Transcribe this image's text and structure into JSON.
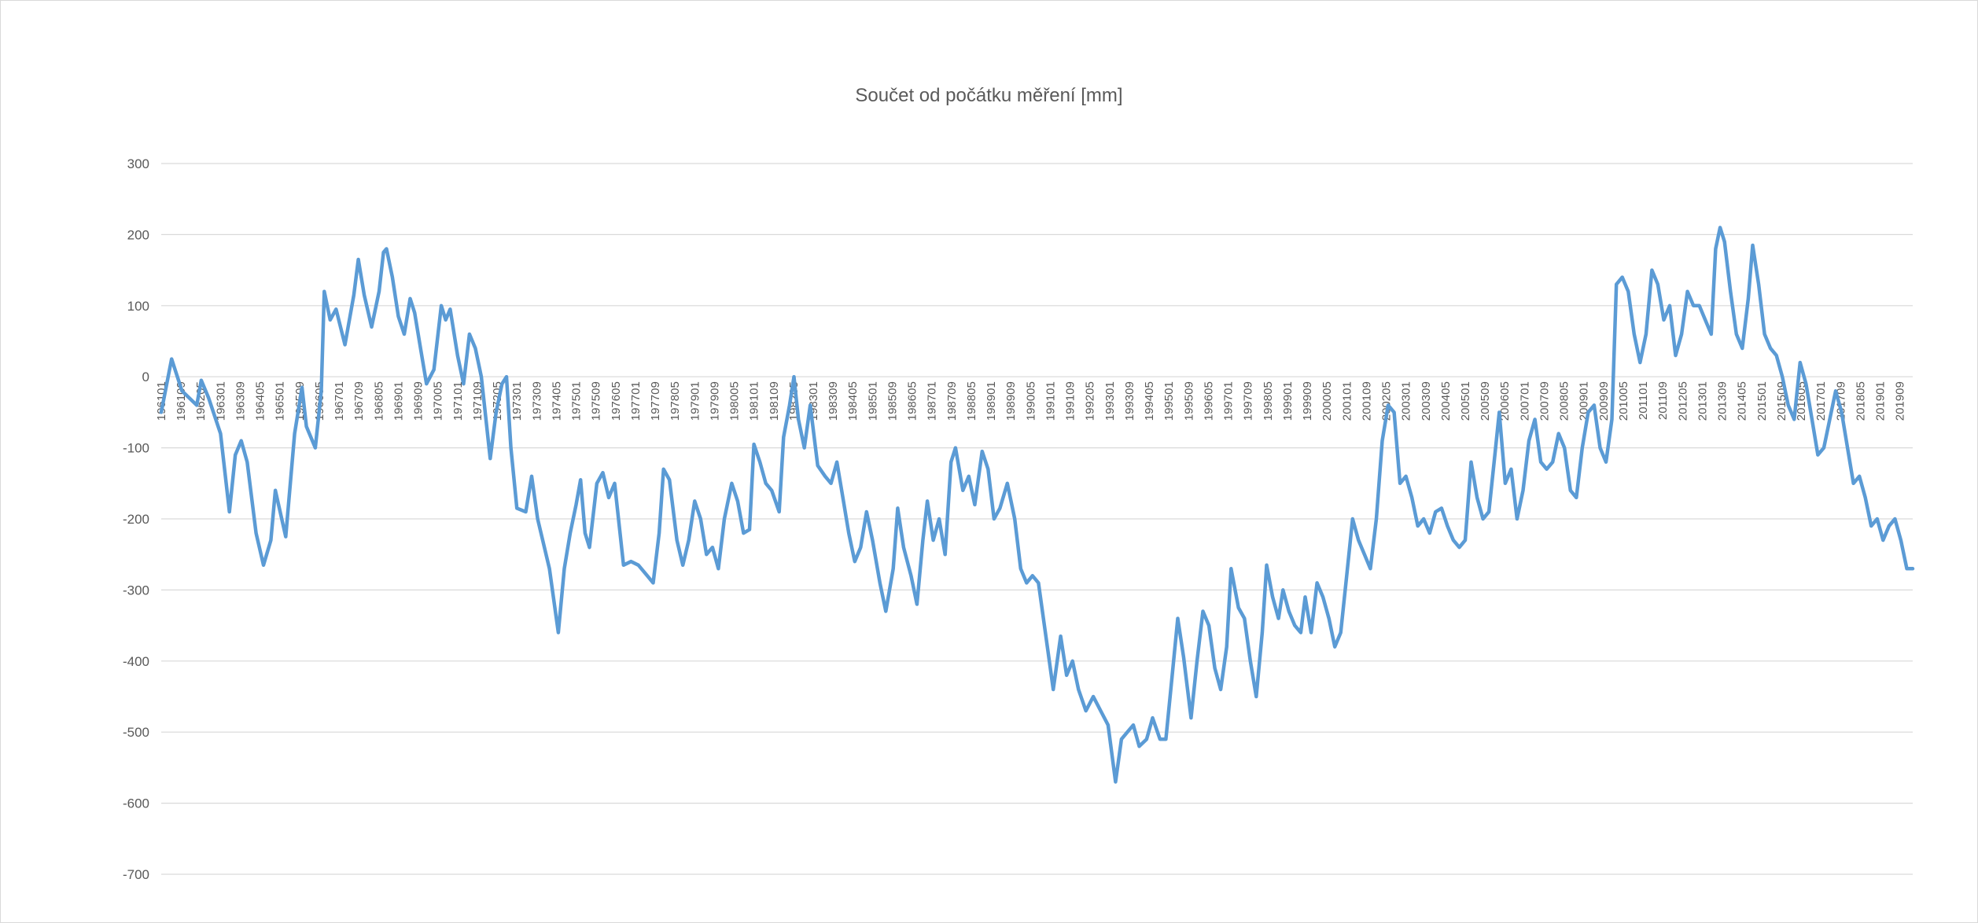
{
  "chart_data": {
    "type": "line",
    "title": "Součet od počátku měření [mm]",
    "xlabel": "",
    "ylabel": "",
    "ylim": [
      -700,
      300
    ],
    "yticks": [
      300,
      200,
      100,
      0,
      -100,
      -200,
      -300,
      -400,
      -500,
      -600,
      -700
    ],
    "grid": true,
    "legend": "none",
    "x_tick_labels": [
      "196101",
      "196109",
      "196205",
      "196301",
      "196309",
      "196405",
      "196501",
      "196509",
      "196605",
      "196701",
      "196709",
      "196805",
      "196901",
      "196909",
      "197005",
      "197101",
      "197109",
      "197205",
      "197301",
      "197309",
      "197405",
      "197501",
      "197509",
      "197605",
      "197701",
      "197709",
      "197805",
      "197901",
      "197909",
      "198005",
      "198101",
      "198109",
      "198205",
      "198301",
      "198309",
      "198405",
      "198501",
      "198509",
      "198605",
      "198701",
      "198709",
      "198805",
      "198901",
      "198909",
      "199005",
      "199101",
      "199109",
      "199205",
      "199301",
      "199309",
      "199405",
      "199501",
      "199509",
      "199605",
      "199701",
      "199709",
      "199805",
      "199901",
      "199909",
      "200005",
      "200101",
      "200109",
      "200205",
      "200301",
      "200309",
      "200405",
      "200501",
      "200509",
      "200605",
      "200701",
      "200709",
      "200805",
      "200901",
      "200909",
      "201005",
      "201101",
      "201109",
      "201205",
      "201301",
      "201309",
      "201405",
      "201501",
      "201509",
      "201605",
      "201701",
      "201709",
      "201805",
      "201901",
      "201909"
    ],
    "series": [
      {
        "color": "#5b9bd5",
        "x_start": "196101",
        "frequency": "monthly",
        "keypoints": [
          [
            1961.0,
            -50
          ],
          [
            1961.35,
            25
          ],
          [
            1961.7,
            -20
          ],
          [
            1962.2,
            -40
          ],
          [
            1962.35,
            -5
          ],
          [
            1962.6,
            -30
          ],
          [
            1963.0,
            -80
          ],
          [
            1963.3,
            -190
          ],
          [
            1963.5,
            -110
          ],
          [
            1963.7,
            -90
          ],
          [
            1963.9,
            -120
          ],
          [
            1964.2,
            -220
          ],
          [
            1964.45,
            -265
          ],
          [
            1964.7,
            -230
          ],
          [
            1964.85,
            -160
          ],
          [
            1965.2,
            -225
          ],
          [
            1965.5,
            -80
          ],
          [
            1965.75,
            -15
          ],
          [
            1965.9,
            -70
          ],
          [
            1966.2,
            -100
          ],
          [
            1966.4,
            -20
          ],
          [
            1966.5,
            120
          ],
          [
            1966.7,
            80
          ],
          [
            1966.9,
            95
          ],
          [
            1967.2,
            45
          ],
          [
            1967.5,
            115
          ],
          [
            1967.65,
            165
          ],
          [
            1967.85,
            115
          ],
          [
            1968.1,
            70
          ],
          [
            1968.35,
            120
          ],
          [
            1968.5,
            175
          ],
          [
            1968.6,
            180
          ],
          [
            1968.8,
            140
          ],
          [
            1969.0,
            85
          ],
          [
            1969.2,
            60
          ],
          [
            1969.4,
            110
          ],
          [
            1969.55,
            90
          ],
          [
            1969.75,
            40
          ],
          [
            1969.95,
            -10
          ],
          [
            1970.2,
            10
          ],
          [
            1970.45,
            100
          ],
          [
            1970.6,
            80
          ],
          [
            1970.75,
            95
          ],
          [
            1971.0,
            30
          ],
          [
            1971.2,
            -10
          ],
          [
            1971.4,
            60
          ],
          [
            1971.6,
            40
          ],
          [
            1971.8,
            0
          ],
          [
            1972.1,
            -115
          ],
          [
            1972.3,
            -50
          ],
          [
            1972.5,
            -10
          ],
          [
            1972.65,
            0
          ],
          [
            1972.8,
            -100
          ],
          [
            1973.0,
            -185
          ],
          [
            1973.3,
            -190
          ],
          [
            1973.5,
            -140
          ],
          [
            1973.7,
            -200
          ],
          [
            1974.1,
            -270
          ],
          [
            1974.4,
            -360
          ],
          [
            1974.6,
            -270
          ],
          [
            1974.8,
            -220
          ],
          [
            1975.0,
            -180
          ],
          [
            1975.15,
            -145
          ],
          [
            1975.3,
            -220
          ],
          [
            1975.45,
            -240
          ],
          [
            1975.7,
            -150
          ],
          [
            1975.9,
            -135
          ],
          [
            1976.1,
            -170
          ],
          [
            1976.3,
            -150
          ],
          [
            1976.6,
            -265
          ],
          [
            1976.85,
            -260
          ],
          [
            1977.1,
            -265
          ],
          [
            1977.4,
            -280
          ],
          [
            1977.6,
            -290
          ],
          [
            1977.8,
            -220
          ],
          [
            1977.95,
            -130
          ],
          [
            1978.15,
            -145
          ],
          [
            1978.4,
            -230
          ],
          [
            1978.6,
            -265
          ],
          [
            1978.8,
            -230
          ],
          [
            1979.0,
            -175
          ],
          [
            1979.2,
            -200
          ],
          [
            1979.4,
            -250
          ],
          [
            1979.6,
            -240
          ],
          [
            1979.8,
            -270
          ],
          [
            1980.0,
            -200
          ],
          [
            1980.25,
            -150
          ],
          [
            1980.45,
            -175
          ],
          [
            1980.65,
            -220
          ],
          [
            1980.85,
            -215
          ],
          [
            1981.0,
            -95
          ],
          [
            1981.2,
            -120
          ],
          [
            1981.4,
            -150
          ],
          [
            1981.6,
            -160
          ],
          [
            1981.85,
            -190
          ],
          [
            1982.0,
            -85
          ],
          [
            1982.2,
            -40
          ],
          [
            1982.35,
            0
          ],
          [
            1982.5,
            -60
          ],
          [
            1982.7,
            -100
          ],
          [
            1982.9,
            -40
          ],
          [
            1983.15,
            -125
          ],
          [
            1983.4,
            -140
          ],
          [
            1983.6,
            -150
          ],
          [
            1983.8,
            -120
          ],
          [
            1984.0,
            -170
          ],
          [
            1984.2,
            -220
          ],
          [
            1984.4,
            -260
          ],
          [
            1984.6,
            -240
          ],
          [
            1984.8,
            -190
          ],
          [
            1985.0,
            -230
          ],
          [
            1985.25,
            -290
          ],
          [
            1985.45,
            -330
          ],
          [
            1985.7,
            -270
          ],
          [
            1985.85,
            -185
          ],
          [
            1986.05,
            -240
          ],
          [
            1986.3,
            -280
          ],
          [
            1986.5,
            -320
          ],
          [
            1986.7,
            -230
          ],
          [
            1986.85,
            -175
          ],
          [
            1987.05,
            -230
          ],
          [
            1987.25,
            -200
          ],
          [
            1987.45,
            -250
          ],
          [
            1987.65,
            -120
          ],
          [
            1987.8,
            -100
          ],
          [
            1988.05,
            -160
          ],
          [
            1988.25,
            -140
          ],
          [
            1988.45,
            -180
          ],
          [
            1988.7,
            -105
          ],
          [
            1988.9,
            -130
          ],
          [
            1989.1,
            -200
          ],
          [
            1989.3,
            -185
          ],
          [
            1989.55,
            -150
          ],
          [
            1989.8,
            -200
          ],
          [
            1990.0,
            -270
          ],
          [
            1990.2,
            -290
          ],
          [
            1990.4,
            -280
          ],
          [
            1990.6,
            -290
          ],
          [
            1990.9,
            -380
          ],
          [
            1991.1,
            -440
          ],
          [
            1991.35,
            -365
          ],
          [
            1991.55,
            -420
          ],
          [
            1991.75,
            -400
          ],
          [
            1991.95,
            -440
          ],
          [
            1992.2,
            -470
          ],
          [
            1992.45,
            -450
          ],
          [
            1992.7,
            -470
          ],
          [
            1992.95,
            -490
          ],
          [
            1993.2,
            -570
          ],
          [
            1993.4,
            -510
          ],
          [
            1993.6,
            -500
          ],
          [
            1993.8,
            -490
          ],
          [
            1994.0,
            -520
          ],
          [
            1994.25,
            -510
          ],
          [
            1994.45,
            -480
          ],
          [
            1994.7,
            -510
          ],
          [
            1994.9,
            -510
          ],
          [
            1995.1,
            -425
          ],
          [
            1995.3,
            -340
          ],
          [
            1995.5,
            -395
          ],
          [
            1995.75,
            -480
          ],
          [
            1995.95,
            -400
          ],
          [
            1996.15,
            -330
          ],
          [
            1996.35,
            -350
          ],
          [
            1996.55,
            -410
          ],
          [
            1996.75,
            -440
          ],
          [
            1996.95,
            -380
          ],
          [
            1997.1,
            -270
          ],
          [
            1997.35,
            -325
          ],
          [
            1997.55,
            -340
          ],
          [
            1997.75,
            -400
          ],
          [
            1997.95,
            -450
          ],
          [
            1998.15,
            -360
          ],
          [
            1998.3,
            -265
          ],
          [
            1998.5,
            -310
          ],
          [
            1998.7,
            -340
          ],
          [
            1998.85,
            -300
          ],
          [
            1999.05,
            -330
          ],
          [
            1999.25,
            -350
          ],
          [
            1999.45,
            -360
          ],
          [
            1999.6,
            -310
          ],
          [
            1999.8,
            -360
          ],
          [
            2000.0,
            -290
          ],
          [
            2000.2,
            -310
          ],
          [
            2000.4,
            -340
          ],
          [
            2000.6,
            -380
          ],
          [
            2000.8,
            -360
          ],
          [
            2001.0,
            -280
          ],
          [
            2001.2,
            -200
          ],
          [
            2001.4,
            -230
          ],
          [
            2001.6,
            -250
          ],
          [
            2001.8,
            -270
          ],
          [
            2002.0,
            -200
          ],
          [
            2002.2,
            -90
          ],
          [
            2002.4,
            -40
          ],
          [
            2002.6,
            -50
          ],
          [
            2002.8,
            -150
          ],
          [
            2003.0,
            -140
          ],
          [
            2003.2,
            -170
          ],
          [
            2003.4,
            -210
          ],
          [
            2003.6,
            -200
          ],
          [
            2003.8,
            -220
          ],
          [
            2004.0,
            -190
          ],
          [
            2004.2,
            -185
          ],
          [
            2004.4,
            -210
          ],
          [
            2004.6,
            -230
          ],
          [
            2004.8,
            -240
          ],
          [
            2005.0,
            -230
          ],
          [
            2005.2,
            -120
          ],
          [
            2005.4,
            -170
          ],
          [
            2005.6,
            -200
          ],
          [
            2005.8,
            -190
          ],
          [
            2006.0,
            -110
          ],
          [
            2006.15,
            -50
          ],
          [
            2006.35,
            -150
          ],
          [
            2006.55,
            -130
          ],
          [
            2006.75,
            -200
          ],
          [
            2006.95,
            -160
          ],
          [
            2007.15,
            -90
          ],
          [
            2007.35,
            -60
          ],
          [
            2007.55,
            -120
          ],
          [
            2007.75,
            -130
          ],
          [
            2007.95,
            -120
          ],
          [
            2008.15,
            -80
          ],
          [
            2008.35,
            -100
          ],
          [
            2008.55,
            -160
          ],
          [
            2008.75,
            -170
          ],
          [
            2008.95,
            -100
          ],
          [
            2009.15,
            -50
          ],
          [
            2009.35,
            -40
          ],
          [
            2009.55,
            -100
          ],
          [
            2009.75,
            -120
          ],
          [
            2009.95,
            -60
          ],
          [
            2010.1,
            130
          ],
          [
            2010.3,
            140
          ],
          [
            2010.5,
            120
          ],
          [
            2010.7,
            60
          ],
          [
            2010.9,
            20
          ],
          [
            2011.1,
            60
          ],
          [
            2011.3,
            150
          ],
          [
            2011.5,
            130
          ],
          [
            2011.7,
            80
          ],
          [
            2011.9,
            100
          ],
          [
            2012.1,
            30
          ],
          [
            2012.3,
            60
          ],
          [
            2012.5,
            120
          ],
          [
            2012.7,
            100
          ],
          [
            2012.9,
            100
          ],
          [
            2013.1,
            80
          ],
          [
            2013.3,
            60
          ],
          [
            2013.45,
            180
          ],
          [
            2013.6,
            210
          ],
          [
            2013.75,
            190
          ],
          [
            2013.95,
            120
          ],
          [
            2014.15,
            60
          ],
          [
            2014.35,
            40
          ],
          [
            2014.55,
            110
          ],
          [
            2014.7,
            185
          ],
          [
            2014.9,
            130
          ],
          [
            2015.1,
            60
          ],
          [
            2015.3,
            40
          ],
          [
            2015.5,
            30
          ],
          [
            2015.7,
            0
          ],
          [
            2015.9,
            -40
          ],
          [
            2016.1,
            -60
          ],
          [
            2016.3,
            20
          ],
          [
            2016.5,
            -10
          ],
          [
            2016.7,
            -60
          ],
          [
            2016.9,
            -110
          ],
          [
            2017.1,
            -100
          ],
          [
            2017.3,
            -60
          ],
          [
            2017.5,
            -20
          ],
          [
            2017.7,
            -50
          ],
          [
            2017.9,
            -100
          ],
          [
            2018.1,
            -150
          ],
          [
            2018.3,
            -140
          ],
          [
            2018.5,
            -170
          ],
          [
            2018.7,
            -210
          ],
          [
            2018.9,
            -200
          ],
          [
            2019.1,
            -230
          ],
          [
            2019.3,
            -210
          ],
          [
            2019.5,
            -200
          ],
          [
            2019.7,
            -230
          ],
          [
            2019.9,
            -270
          ],
          [
            2020.1,
            -270
          ]
        ]
      }
    ]
  }
}
